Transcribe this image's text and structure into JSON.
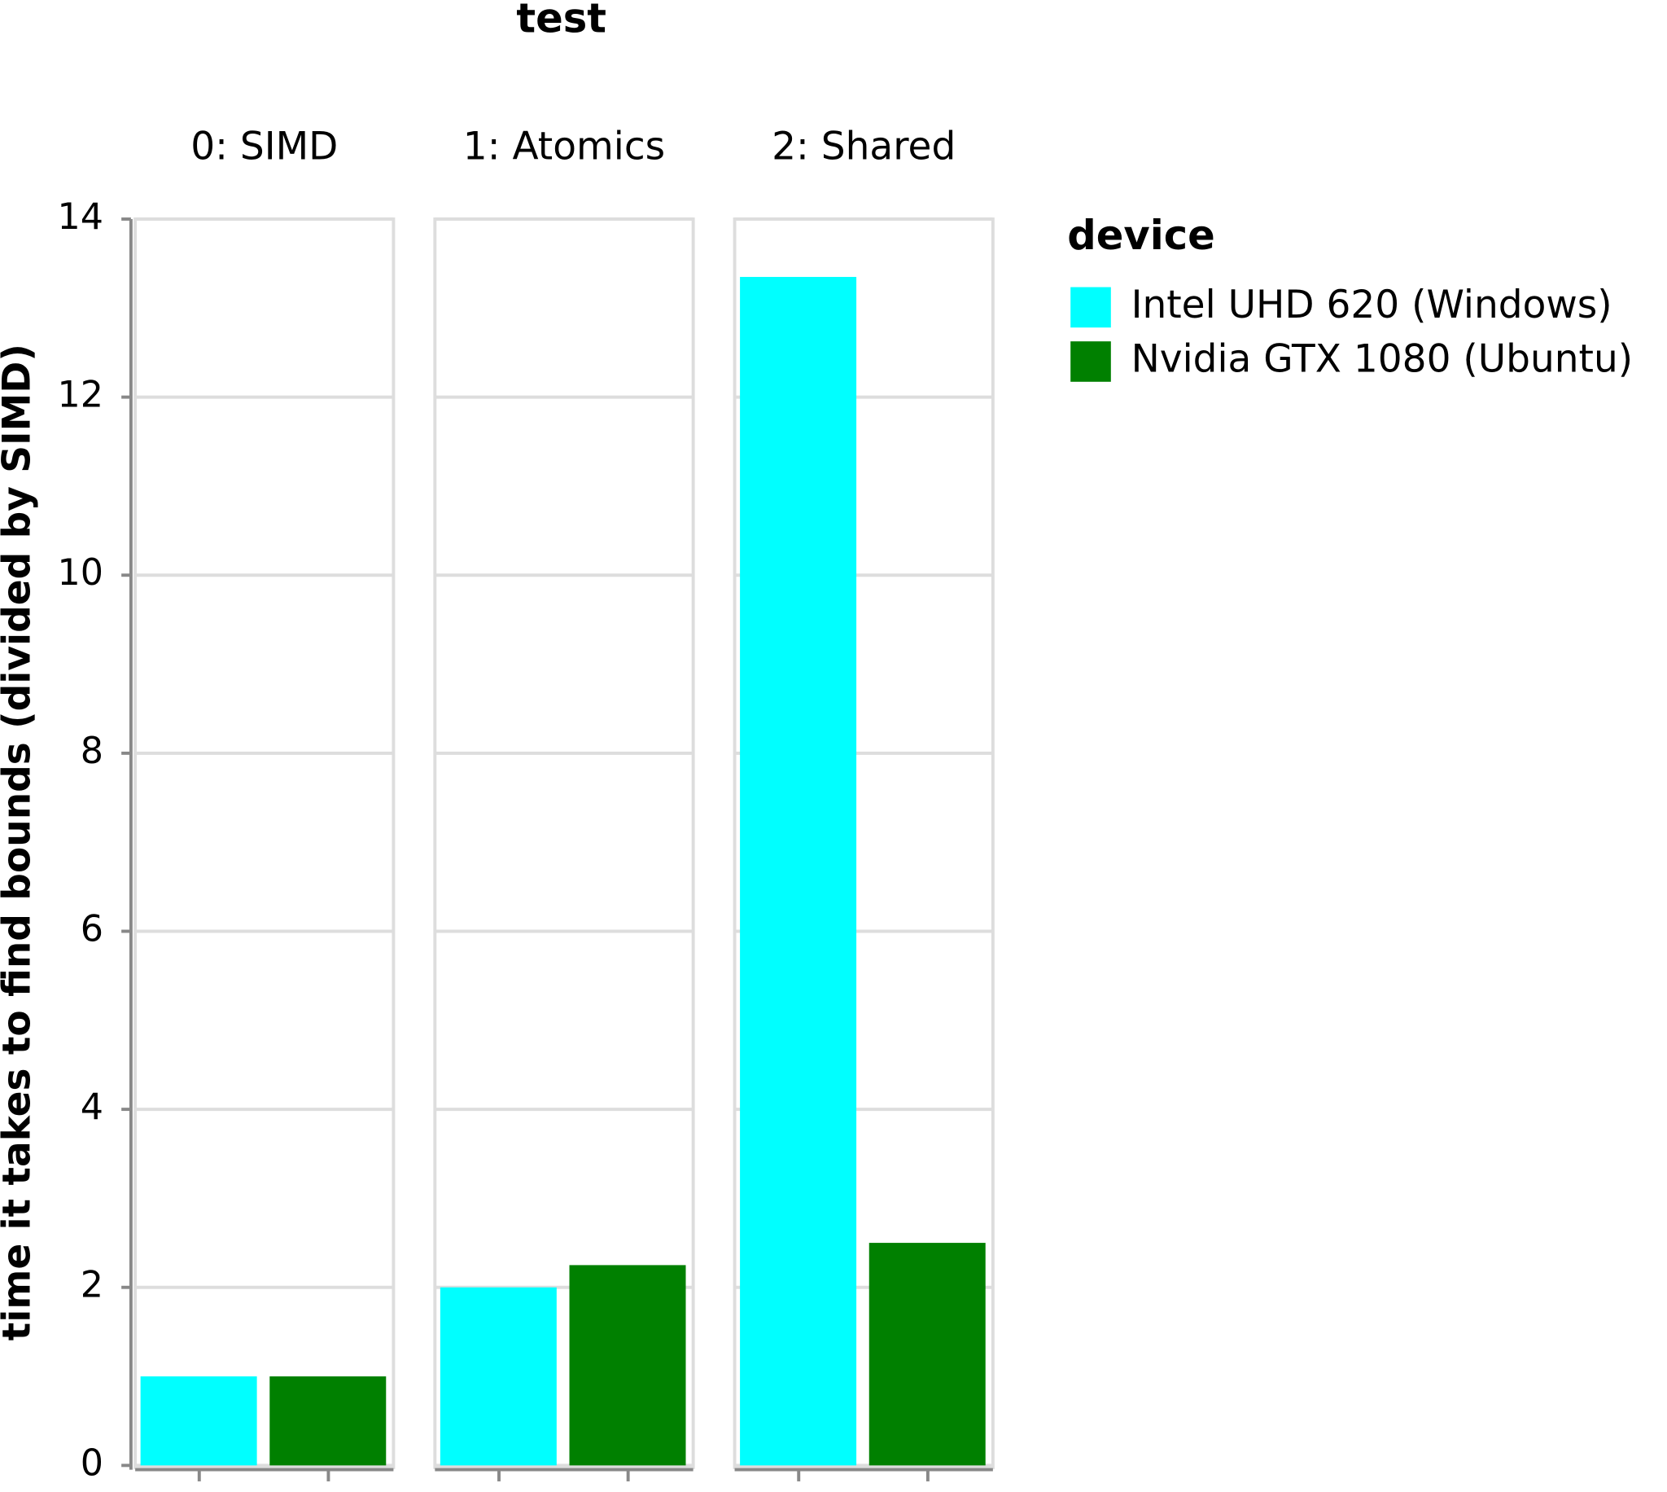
{
  "chart_data": {
    "type": "bar",
    "title": "test",
    "categories": [
      "0: SIMD",
      "1: Atomics",
      "2: Shared"
    ],
    "y_label": "time it takes to find bounds (divided by SIMD)",
    "legend_title": "device",
    "series": [
      {
        "name": "Intel UHD 620 (Windows)",
        "color": "#00ffff",
        "values": [
          1,
          2,
          13.35
        ]
      },
      {
        "name": "Nvidia GTX 1080 (Ubuntu)",
        "color": "#008000",
        "values": [
          1,
          2.25,
          2.5
        ]
      }
    ],
    "ylim": [
      0,
      14
    ],
    "yticks": [
      0,
      2,
      4,
      6,
      8,
      10,
      12,
      14
    ],
    "grid": true,
    "legend": "right"
  }
}
